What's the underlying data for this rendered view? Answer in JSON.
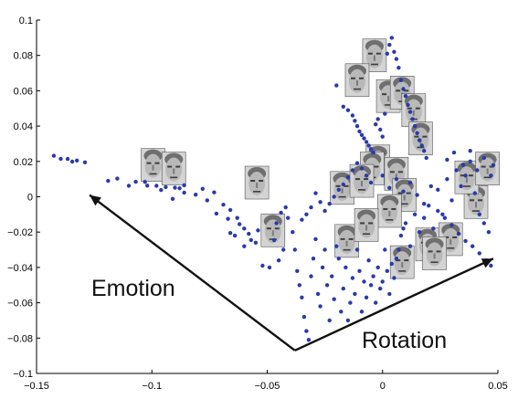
{
  "chart_data": {
    "type": "scatter",
    "title": "",
    "xlabel": "",
    "ylabel": "",
    "xlim": [
      -0.15,
      0.05
    ],
    "ylim": [
      -0.1,
      0.1
    ],
    "x_ticks": [
      "-0.15",
      "-0.1",
      "-0.05",
      "0",
      "0.05"
    ],
    "y_ticks": [
      "0.1",
      "0.08",
      "0.06",
      "0.04",
      "0.02",
      "0",
      "-0.02",
      "-0.04",
      "-0.06",
      "-0.08",
      "-0.1"
    ],
    "point_color": "#2b3aa8",
    "series": [
      {
        "points": [
          [
            -0.1425,
            0.0232
          ],
          [
            -0.1395,
            0.0215
          ],
          [
            -0.1365,
            0.0214
          ],
          [
            -0.1345,
            0.0199
          ],
          [
            -0.1325,
            0.0205
          ],
          [
            -0.129,
            0.0195
          ],
          [
            -0.119,
            0.009
          ],
          [
            -0.115,
            0.0103
          ],
          [
            -0.11,
            0.0062
          ],
          [
            -0.107,
            0.0085
          ],
          [
            -0.102,
            0.0063
          ],
          [
            -0.098,
            0.0062
          ],
          [
            -0.094,
            0.0055
          ],
          [
            -0.09,
            0.0051
          ],
          [
            -0.086,
            0.0023
          ],
          [
            -0.081,
            0.0012
          ],
          [
            -0.076,
            -0.002
          ],
          [
            -0.073,
            0.0025
          ],
          [
            -0.069,
            -0.0045
          ],
          [
            -0.066,
            -0.0075
          ],
          [
            -0.063,
            -0.012
          ],
          [
            -0.06,
            -0.018
          ],
          [
            -0.058,
            -0.021
          ],
          [
            -0.055,
            -0.026
          ],
          [
            -0.052,
            -0.039
          ],
          [
            -0.049,
            -0.04
          ],
          [
            -0.046,
            -0.015
          ],
          [
            -0.044,
            -0.009
          ],
          [
            -0.042,
            -0.006
          ],
          [
            -0.041,
            -0.012
          ],
          [
            -0.039,
            -0.02
          ],
          [
            -0.038,
            -0.03
          ],
          [
            -0.037,
            -0.042
          ],
          [
            -0.036,
            -0.05
          ],
          [
            -0.035,
            -0.057
          ],
          [
            -0.034,
            -0.068
          ],
          [
            -0.033,
            -0.076
          ],
          [
            -0.032,
            -0.081
          ],
          [
            -0.031,
            -0.045
          ],
          [
            -0.03,
            -0.035
          ],
          [
            -0.029,
            -0.024
          ],
          [
            -0.028,
            -0.055
          ],
          [
            -0.027,
            -0.062
          ],
          [
            -0.026,
            -0.04
          ],
          [
            -0.025,
            -0.03
          ],
          [
            -0.024,
            -0.05
          ],
          [
            -0.023,
            -0.07
          ],
          [
            -0.022,
            -0.045
          ],
          [
            -0.021,
            -0.058
          ],
          [
            -0.02,
            -0.028
          ],
          [
            -0.019,
            -0.035
          ],
          [
            -0.018,
            -0.065
          ],
          [
            -0.017,
            -0.052
          ],
          [
            -0.016,
            -0.04
          ],
          [
            -0.015,
            -0.07
          ],
          [
            -0.014,
            -0.06
          ],
          [
            -0.013,
            -0.046
          ],
          [
            -0.012,
            -0.055
          ],
          [
            -0.011,
            -0.03
          ],
          [
            -0.01,
            -0.042
          ],
          [
            -0.009,
            -0.065
          ],
          [
            -0.008,
            -0.048
          ],
          [
            -0.007,
            -0.057
          ],
          [
            -0.006,
            -0.036
          ],
          [
            -0.005,
            -0.05
          ],
          [
            -0.004,
            -0.045
          ],
          [
            -0.003,
            -0.06
          ],
          [
            -0.002,
            -0.04
          ],
          [
            -0.001,
            -0.052
          ],
          [
            0.0,
            -0.048
          ],
          [
            0.001,
            -0.03
          ],
          [
            0.002,
            -0.042
          ],
          [
            0.003,
            -0.055
          ],
          [
            0.004,
            -0.038
          ],
          [
            0.005,
            -0.046
          ],
          [
            0.006,
            -0.035
          ],
          [
            0.007,
            -0.03
          ],
          [
            0.008,
            -0.022
          ],
          [
            0.009,
            -0.018
          ],
          [
            0.01,
            -0.015
          ],
          [
            0.012,
            -0.028
          ],
          [
            0.014,
            -0.01
          ],
          [
            0.016,
            -0.02
          ],
          [
            0.018,
            -0.012
          ],
          [
            0.02,
            -0.005
          ],
          [
            0.022,
            -0.018
          ],
          [
            0.024,
            0.004
          ],
          [
            0.026,
            -0.01
          ],
          [
            0.028,
            0.01
          ],
          [
            0.03,
            -0.002
          ],
          [
            0.032,
            0.015
          ],
          [
            0.034,
            0.006
          ],
          [
            0.036,
            0.012
          ],
          [
            0.038,
            0.02
          ],
          [
            0.04,
            0.002
          ],
          [
            0.042,
            -0.01
          ],
          [
            0.044,
            -0.015
          ],
          [
            0.046,
            -0.02
          ],
          [
            0.048,
            0.018
          ],
          [
            -0.02,
            0.063
          ],
          [
            -0.017,
            0.051
          ],
          [
            -0.015,
            0.049
          ],
          [
            -0.013,
            0.046
          ],
          [
            -0.012,
            0.043
          ],
          [
            -0.011,
            0.04
          ],
          [
            -0.01,
            0.037
          ],
          [
            -0.009,
            0.035
          ],
          [
            -0.008,
            0.033
          ],
          [
            -0.007,
            0.031
          ],
          [
            -0.006,
            0.029
          ],
          [
            -0.005,
            0.027
          ],
          [
            -0.004,
            0.025
          ],
          [
            -0.003,
            0.041
          ],
          [
            -0.002,
            0.044
          ],
          [
            -0.001,
            0.038
          ],
          [
            0.0,
            0.034
          ],
          [
            0.001,
            0.047
          ],
          [
            0.002,
            0.081
          ],
          [
            0.003,
            0.086
          ],
          [
            0.004,
            0.09
          ],
          [
            0.005,
            0.082
          ],
          [
            0.006,
            0.078
          ],
          [
            0.007,
            0.073
          ],
          [
            0.008,
            0.066
          ],
          [
            0.009,
            0.061
          ],
          [
            0.01,
            0.057
          ],
          [
            0.011,
            0.052
          ],
          [
            0.012,
            0.048
          ],
          [
            0.013,
            0.044
          ],
          [
            0.014,
            0.04
          ],
          [
            0.015,
            0.036
          ],
          [
            0.016,
            0.032
          ],
          [
            0.017,
            0.029
          ],
          [
            0.018,
            0.026
          ],
          [
            0.019,
            0.022
          ],
          [
            -0.005,
            0.008
          ],
          [
            -0.007,
            0.012
          ],
          [
            -0.009,
            0.016
          ],
          [
            -0.011,
            0.019
          ],
          [
            -0.013,
            0.015
          ],
          [
            -0.015,
            0.011
          ],
          [
            -0.017,
            0.007
          ],
          [
            -0.019,
            0.004
          ],
          [
            -0.021,
            0.0
          ],
          [
            -0.023,
            -0.004
          ],
          [
            -0.025,
            -0.008
          ],
          [
            -0.027,
            -0.003
          ],
          [
            -0.029,
            0.002
          ],
          [
            -0.031,
            -0.006
          ],
          [
            -0.033,
            -0.01
          ],
          [
            -0.035,
            -0.013
          ],
          [
            0.0,
            0.012
          ],
          [
            0.003,
            0.005
          ],
          [
            0.006,
            0.01
          ],
          [
            0.009,
            0.003
          ],
          [
            0.012,
            0.008
          ],
          [
            0.015,
            0.001
          ],
          [
            0.018,
            -0.004
          ],
          [
            0.021,
            0.006
          ],
          [
            0.024,
            -0.008
          ],
          [
            0.027,
            -0.012
          ],
          [
            0.03,
            -0.016
          ],
          [
            0.033,
            -0.021
          ],
          [
            0.036,
            -0.025
          ],
          [
            0.039,
            -0.028
          ],
          [
            0.042,
            -0.032
          ],
          [
            0.045,
            -0.036
          ],
          [
            0.047,
            -0.039
          ],
          [
            0.041,
            0.015
          ],
          [
            0.044,
            0.022
          ],
          [
            0.047,
            0.012
          ],
          [
            0.038,
            0.026
          ],
          [
            0.035,
            0.018
          ],
          [
            0.031,
            0.025
          ],
          [
            0.028,
            0.021
          ],
          [
            -0.086,
            0.0065
          ],
          [
            -0.096,
            0.0038
          ],
          [
            -0.103,
            0.0084
          ],
          [
            -0.088,
            0.0048
          ],
          [
            -0.091,
            -0.0012
          ],
          [
            -0.078,
            0.0045
          ],
          [
            -0.072,
            -0.0095
          ],
          [
            -0.067,
            -0.0125
          ],
          [
            -0.062,
            -0.0155
          ],
          [
            -0.057,
            -0.0245
          ],
          [
            -0.06,
            -0.028
          ],
          [
            -0.066,
            -0.0205
          ],
          [
            -0.064,
            -0.022
          ],
          [
            -0.054,
            -0.019
          ],
          [
            -0.047,
            -0.0245
          ],
          [
            -0.043,
            -0.03
          ],
          [
            -0.045,
            -0.036
          ]
        ]
      }
    ],
    "annotations": [
      {
        "text": "Emotion"
      },
      {
        "text": "Rotation"
      }
    ],
    "arrows": [
      {
        "from": [
          -0.038,
          -0.087
        ],
        "to": [
          -0.127,
          0.001
        ]
      },
      {
        "from": [
          -0.038,
          -0.087
        ],
        "to": [
          0.048,
          -0.035
        ]
      }
    ],
    "thumbnails": [
      [
        -0.0995,
        0.018
      ],
      [
        -0.0905,
        0.016
      ],
      [
        -0.0545,
        0.008
      ],
      [
        -0.0475,
        -0.019
      ],
      [
        -0.0175,
        0.005
      ],
      [
        -0.0155,
        -0.025
      ],
      [
        -0.0035,
        0.08
      ],
      [
        -0.011,
        0.066
      ],
      [
        0.0025,
        0.057
      ],
      [
        0.0085,
        0.059
      ],
      [
        0.0135,
        0.049
      ],
      [
        0.0165,
        0.033
      ],
      [
        -0.002,
        0.02
      ],
      [
        -0.0045,
        0.016
      ],
      [
        -0.009,
        0.009
      ],
      [
        0.006,
        0.013
      ],
      [
        0.0095,
        0.001
      ],
      [
        0.003,
        -0.008
      ],
      [
        -0.007,
        -0.016
      ],
      [
        0.0085,
        -0.037
      ],
      [
        0.0195,
        -0.027
      ],
      [
        0.0295,
        -0.024
      ],
      [
        0.0405,
        -0.003
      ],
      [
        0.0365,
        0.011
      ],
      [
        0.0455,
        0.016
      ],
      [
        0.0225,
        -0.032
      ]
    ]
  }
}
